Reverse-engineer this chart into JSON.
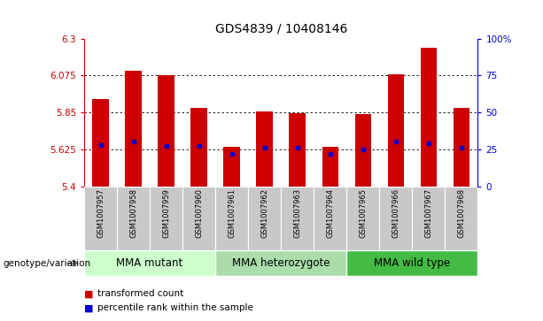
{
  "title": "GDS4839 / 10408146",
  "samples": [
    "GSM1007957",
    "GSM1007958",
    "GSM1007959",
    "GSM1007960",
    "GSM1007961",
    "GSM1007962",
    "GSM1007963",
    "GSM1007964",
    "GSM1007965",
    "GSM1007966",
    "GSM1007967",
    "GSM1007968"
  ],
  "bar_values": [
    5.93,
    6.105,
    6.075,
    5.875,
    5.638,
    5.855,
    5.845,
    5.638,
    5.838,
    6.082,
    6.245,
    5.875
  ],
  "percentile_values": [
    28,
    30,
    27,
    27,
    22,
    26,
    26,
    22,
    25,
    30,
    29,
    26
  ],
  "bar_bottom": 5.4,
  "ylim_left": [
    5.4,
    6.3
  ],
  "ylim_right": [
    0,
    100
  ],
  "yticks_left": [
    5.4,
    5.625,
    5.85,
    6.075,
    6.3
  ],
  "yticks_right": [
    0,
    25,
    50,
    75,
    100
  ],
  "bar_color": "#cc0000",
  "dot_color": "#0000cc",
  "bar_width": 0.5,
  "groups": [
    {
      "label": "MMA mutant",
      "indices": [
        0,
        1,
        2,
        3
      ],
      "color": "#ccffcc"
    },
    {
      "label": "MMA heterozygote",
      "indices": [
        4,
        5,
        6,
        7
      ],
      "color": "#aaddaa"
    },
    {
      "label": "MMA wild type",
      "indices": [
        8,
        9,
        10,
        11
      ],
      "color": "#44bb44"
    }
  ],
  "genotype_label": "genotype/variation",
  "legend_red": "transformed count",
  "legend_blue": "percentile rank within the sample",
  "left_tick_color": "#cc0000",
  "right_tick_color": "#0000cc",
  "title_fontsize": 10,
  "tick_fontsize": 7.5,
  "group_label_fontsize": 8.5,
  "sample_fontsize": 6.0
}
